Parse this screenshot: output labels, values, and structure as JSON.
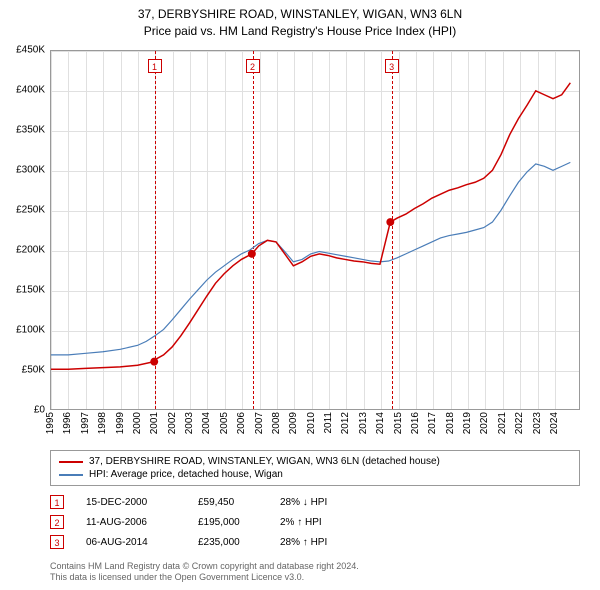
{
  "title_line1": "37, DERBYSHIRE ROAD, WINSTANLEY, WIGAN, WN3 6LN",
  "title_line2": "Price paid vs. HM Land Registry's House Price Index (HPI)",
  "chart": {
    "type": "line",
    "background_color": "#ffffff",
    "grid_color": "#e0e0e0",
    "border_color": "#999999",
    "xlim": [
      1995,
      2025.5
    ],
    "ylim": [
      0,
      450000
    ],
    "ytick_step": 50000,
    "y_ticks": [
      "£0",
      "£50K",
      "£100K",
      "£150K",
      "£200K",
      "£250K",
      "£300K",
      "£350K",
      "£400K",
      "£450K"
    ],
    "x_ticks": [
      "1995",
      "1996",
      "1997",
      "1998",
      "1999",
      "2000",
      "2001",
      "2002",
      "2003",
      "2004",
      "2005",
      "2006",
      "2007",
      "2008",
      "2009",
      "2010",
      "2011",
      "2012",
      "2013",
      "2014",
      "2015",
      "2016",
      "2017",
      "2018",
      "2019",
      "2020",
      "2021",
      "2022",
      "2023",
      "2024"
    ],
    "label_fontsize": 10,
    "series": {
      "property": {
        "label": "37, DERBYSHIRE ROAD, WINSTANLEY, WIGAN, WN3 6LN (detached house)",
        "color": "#cc0000",
        "line_width": 1.5,
        "points": [
          [
            1995,
            50000
          ],
          [
            1996,
            50000
          ],
          [
            1997,
            51000
          ],
          [
            1998,
            52000
          ],
          [
            1999,
            53000
          ],
          [
            2000,
            55000
          ],
          [
            2000.96,
            59450
          ],
          [
            2001,
            62000
          ],
          [
            2001.5,
            68000
          ],
          [
            2002,
            78000
          ],
          [
            2002.5,
            92000
          ],
          [
            2003,
            108000
          ],
          [
            2003.5,
            125000
          ],
          [
            2004,
            142000
          ],
          [
            2004.5,
            158000
          ],
          [
            2005,
            170000
          ],
          [
            2005.5,
            180000
          ],
          [
            2006,
            188000
          ],
          [
            2006.6,
            195000
          ],
          [
            2007,
            205000
          ],
          [
            2007.5,
            212000
          ],
          [
            2008,
            210000
          ],
          [
            2008.5,
            195000
          ],
          [
            2009,
            180000
          ],
          [
            2009.5,
            185000
          ],
          [
            2010,
            192000
          ],
          [
            2010.5,
            195000
          ],
          [
            2011,
            193000
          ],
          [
            2011.5,
            190000
          ],
          [
            2012,
            188000
          ],
          [
            2012.5,
            186000
          ],
          [
            2013,
            185000
          ],
          [
            2013.5,
            183000
          ],
          [
            2014,
            182000
          ],
          [
            2014.6,
            235000
          ],
          [
            2015,
            240000
          ],
          [
            2015.5,
            245000
          ],
          [
            2016,
            252000
          ],
          [
            2016.5,
            258000
          ],
          [
            2017,
            265000
          ],
          [
            2017.5,
            270000
          ],
          [
            2018,
            275000
          ],
          [
            2018.5,
            278000
          ],
          [
            2019,
            282000
          ],
          [
            2019.5,
            285000
          ],
          [
            2020,
            290000
          ],
          [
            2020.5,
            300000
          ],
          [
            2021,
            320000
          ],
          [
            2021.5,
            345000
          ],
          [
            2022,
            365000
          ],
          [
            2022.5,
            382000
          ],
          [
            2023,
            400000
          ],
          [
            2023.5,
            395000
          ],
          [
            2024,
            390000
          ],
          [
            2024.5,
            395000
          ],
          [
            2025,
            410000
          ]
        ],
        "markers": [
          [
            2000.96,
            59450
          ],
          [
            2006.6,
            195000
          ],
          [
            2014.6,
            235000
          ]
        ],
        "marker_color": "#cc0000",
        "marker_size": 4
      },
      "hpi": {
        "label": "HPI: Average price, detached house, Wigan",
        "color": "#4a7db8",
        "line_width": 1.2,
        "points": [
          [
            1995,
            68000
          ],
          [
            1996,
            68000
          ],
          [
            1997,
            70000
          ],
          [
            1998,
            72000
          ],
          [
            1999,
            75000
          ],
          [
            2000,
            80000
          ],
          [
            2000.5,
            85000
          ],
          [
            2001,
            92000
          ],
          [
            2001.5,
            100000
          ],
          [
            2002,
            112000
          ],
          [
            2002.5,
            125000
          ],
          [
            2003,
            138000
          ],
          [
            2003.5,
            150000
          ],
          [
            2004,
            162000
          ],
          [
            2004.5,
            172000
          ],
          [
            2005,
            180000
          ],
          [
            2005.5,
            188000
          ],
          [
            2006,
            195000
          ],
          [
            2006.5,
            200000
          ],
          [
            2007,
            208000
          ],
          [
            2007.5,
            212000
          ],
          [
            2008,
            210000
          ],
          [
            2008.5,
            198000
          ],
          [
            2009,
            185000
          ],
          [
            2009.5,
            188000
          ],
          [
            2010,
            195000
          ],
          [
            2010.5,
            198000
          ],
          [
            2011,
            196000
          ],
          [
            2011.5,
            194000
          ],
          [
            2012,
            192000
          ],
          [
            2012.5,
            190000
          ],
          [
            2013,
            188000
          ],
          [
            2013.5,
            186000
          ],
          [
            2014,
            185000
          ],
          [
            2014.5,
            186000
          ],
          [
            2015,
            190000
          ],
          [
            2015.5,
            195000
          ],
          [
            2016,
            200000
          ],
          [
            2016.5,
            205000
          ],
          [
            2017,
            210000
          ],
          [
            2017.5,
            215000
          ],
          [
            2018,
            218000
          ],
          [
            2018.5,
            220000
          ],
          [
            2019,
            222000
          ],
          [
            2019.5,
            225000
          ],
          [
            2020,
            228000
          ],
          [
            2020.5,
            235000
          ],
          [
            2021,
            250000
          ],
          [
            2021.5,
            268000
          ],
          [
            2022,
            285000
          ],
          [
            2022.5,
            298000
          ],
          [
            2023,
            308000
          ],
          [
            2023.5,
            305000
          ],
          [
            2024,
            300000
          ],
          [
            2024.5,
            305000
          ],
          [
            2025,
            310000
          ]
        ]
      }
    },
    "event_lines": [
      {
        "num": "1",
        "x": 2000.96
      },
      {
        "num": "2",
        "x": 2006.6
      },
      {
        "num": "3",
        "x": 2014.6
      }
    ]
  },
  "legend": [
    {
      "color": "#cc0000",
      "label": "37, DERBYSHIRE ROAD, WINSTANLEY, WIGAN, WN3 6LN (detached house)"
    },
    {
      "color": "#4a7db8",
      "label": "HPI: Average price, detached house, Wigan"
    }
  ],
  "events": [
    {
      "num": "1",
      "date": "15-DEC-2000",
      "price": "£59,450",
      "pct": "28% ↓ HPI"
    },
    {
      "num": "2",
      "date": "11-AUG-2006",
      "price": "£195,000",
      "pct": "2% ↑ HPI"
    },
    {
      "num": "3",
      "date": "06-AUG-2014",
      "price": "£235,000",
      "pct": "28% ↑ HPI"
    }
  ],
  "attribution_line1": "Contains HM Land Registry data © Crown copyright and database right 2024.",
  "attribution_line2": "This data is licensed under the Open Government Licence v3.0."
}
